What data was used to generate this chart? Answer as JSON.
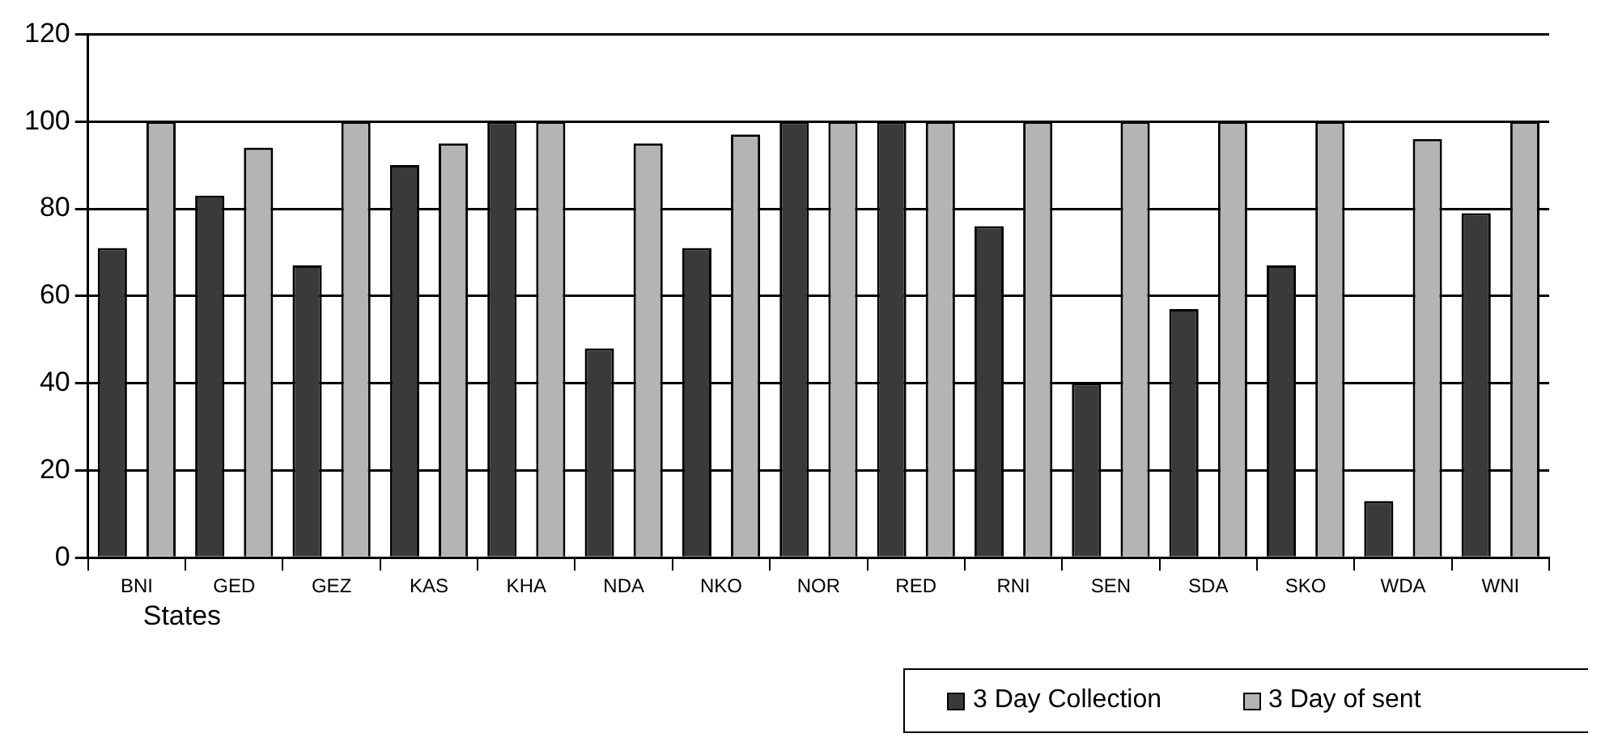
{
  "chart_data": {
    "type": "bar",
    "xlabel": "States",
    "categories": [
      "BNI",
      "GED",
      "GEZ",
      "KAS",
      "KHA",
      "NDA",
      "NKO",
      "NOR",
      "RED",
      "RNI",
      "SEN",
      "SDA",
      "SKO",
      "WDA",
      "WNI"
    ],
    "series": [
      {
        "name": "3 Day Collection",
        "color": "#3a3a3a",
        "values": [
          71,
          83,
          67,
          90,
          100,
          48,
          71,
          100,
          100,
          76,
          40,
          57,
          67,
          13,
          79
        ]
      },
      {
        "name": "3 Day of sent",
        "color": "#b4b4b4",
        "values": [
          100,
          94,
          100,
          95,
          100,
          95,
          97,
          100,
          100,
          100,
          100,
          100,
          100,
          96,
          100
        ]
      }
    ],
    "ylim": [
      0,
      120
    ],
    "yticks": [
      0,
      20,
      40,
      60,
      80,
      100,
      120
    ],
    "grid": "y",
    "legend": "bottom right"
  }
}
